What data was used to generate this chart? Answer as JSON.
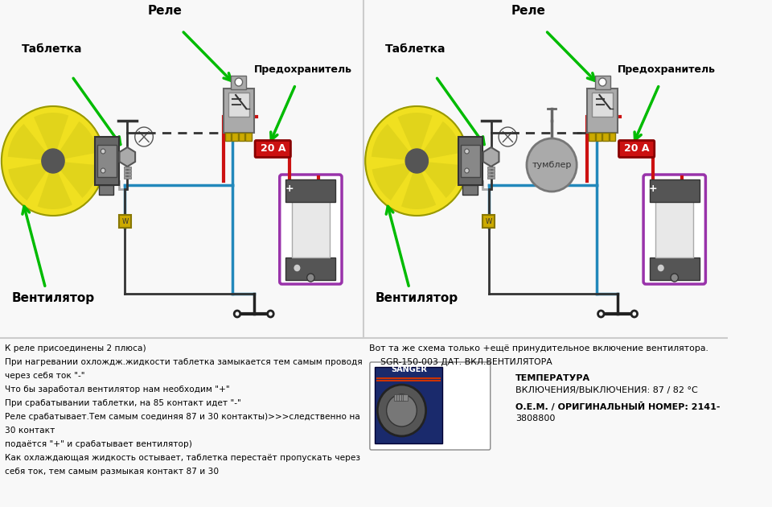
{
  "bg_color": "#f8f8f8",
  "left_diagram": {
    "labels": {
      "tabletka": "Таблетка",
      "rele": "Реле",
      "predohranitel": "Предохранитель",
      "ventilyator": "Вентилятор"
    },
    "fuse_text": "20 А"
  },
  "right_diagram": {
    "labels": {
      "tabletka": "Таблетка",
      "rele": "Реле",
      "predohranitel": "Предохранитель",
      "ventilyator": "Вентилятор",
      "tumbler": "тумблер"
    },
    "fuse_text": "20 А"
  },
  "bottom_left_text": [
    "К реле присоединены 2 плюса)",
    "При нагревании охлождж.жидкости таблетка замыкается тем самым проводя",
    "через себя ток \"-\"",
    "Что бы заработал вентилятор нам необходим \"+\"",
    "При срабатывании таблетки, на 85 контакт идет \"-\"",
    "Реле срабатывает.Тем самым соединяя 87 и 30 контакты)>>>следственно на",
    "30 контакт",
    "подаётся \"+\" и срабатывает вентилятор)",
    "Как охлаждающая жидкость остывает, таблетка перестаёт пропускать через",
    "себя ток, тем самым размыкая контакт 87 и 30"
  ],
  "bottom_right_text_line1": "Вот та же схема только +ещё принудительное включение вентилятора.",
  "bottom_right_text_line2": "    SGR-150-003 ДАТ. ВКЛ.ВЕНТИЛЯТОРА",
  "bottom_right_text_line3": "ТЕМПЕРАТУРА",
  "bottom_right_text_line4": "ВКЛЮЧЕНИЯ/ВЫКЛЮЧЕНИЯ: 87 / 82 °С",
  "bottom_right_text_line5": "О.Е.М. / ОРИГИНАЛЬНЫЙ НОМЕР: 2141-",
  "bottom_right_text_line6": "3808800",
  "colors": {
    "white": "#ffffff",
    "black": "#000000",
    "red_wire": "#cc1111",
    "blue_wire": "#2288bb",
    "black_wire": "#222222",
    "green_arrow": "#00bb00",
    "fan_yellow": "#f0e020",
    "relay_gray": "#aaaaaa",
    "relay_inner": "#dddddd",
    "terminal_yellow": "#ccaa00",
    "fuse_red": "#cc1111",
    "battery_purple": "#9933aa",
    "battery_dark": "#555555",
    "battery_white": "#eeeeee",
    "sensor_gray": "#aaaaaa",
    "tumbler_gray": "#aaaaaa",
    "bg": "#f8f8f8",
    "grid_line": "#999999",
    "motor_dark": "#666666"
  }
}
